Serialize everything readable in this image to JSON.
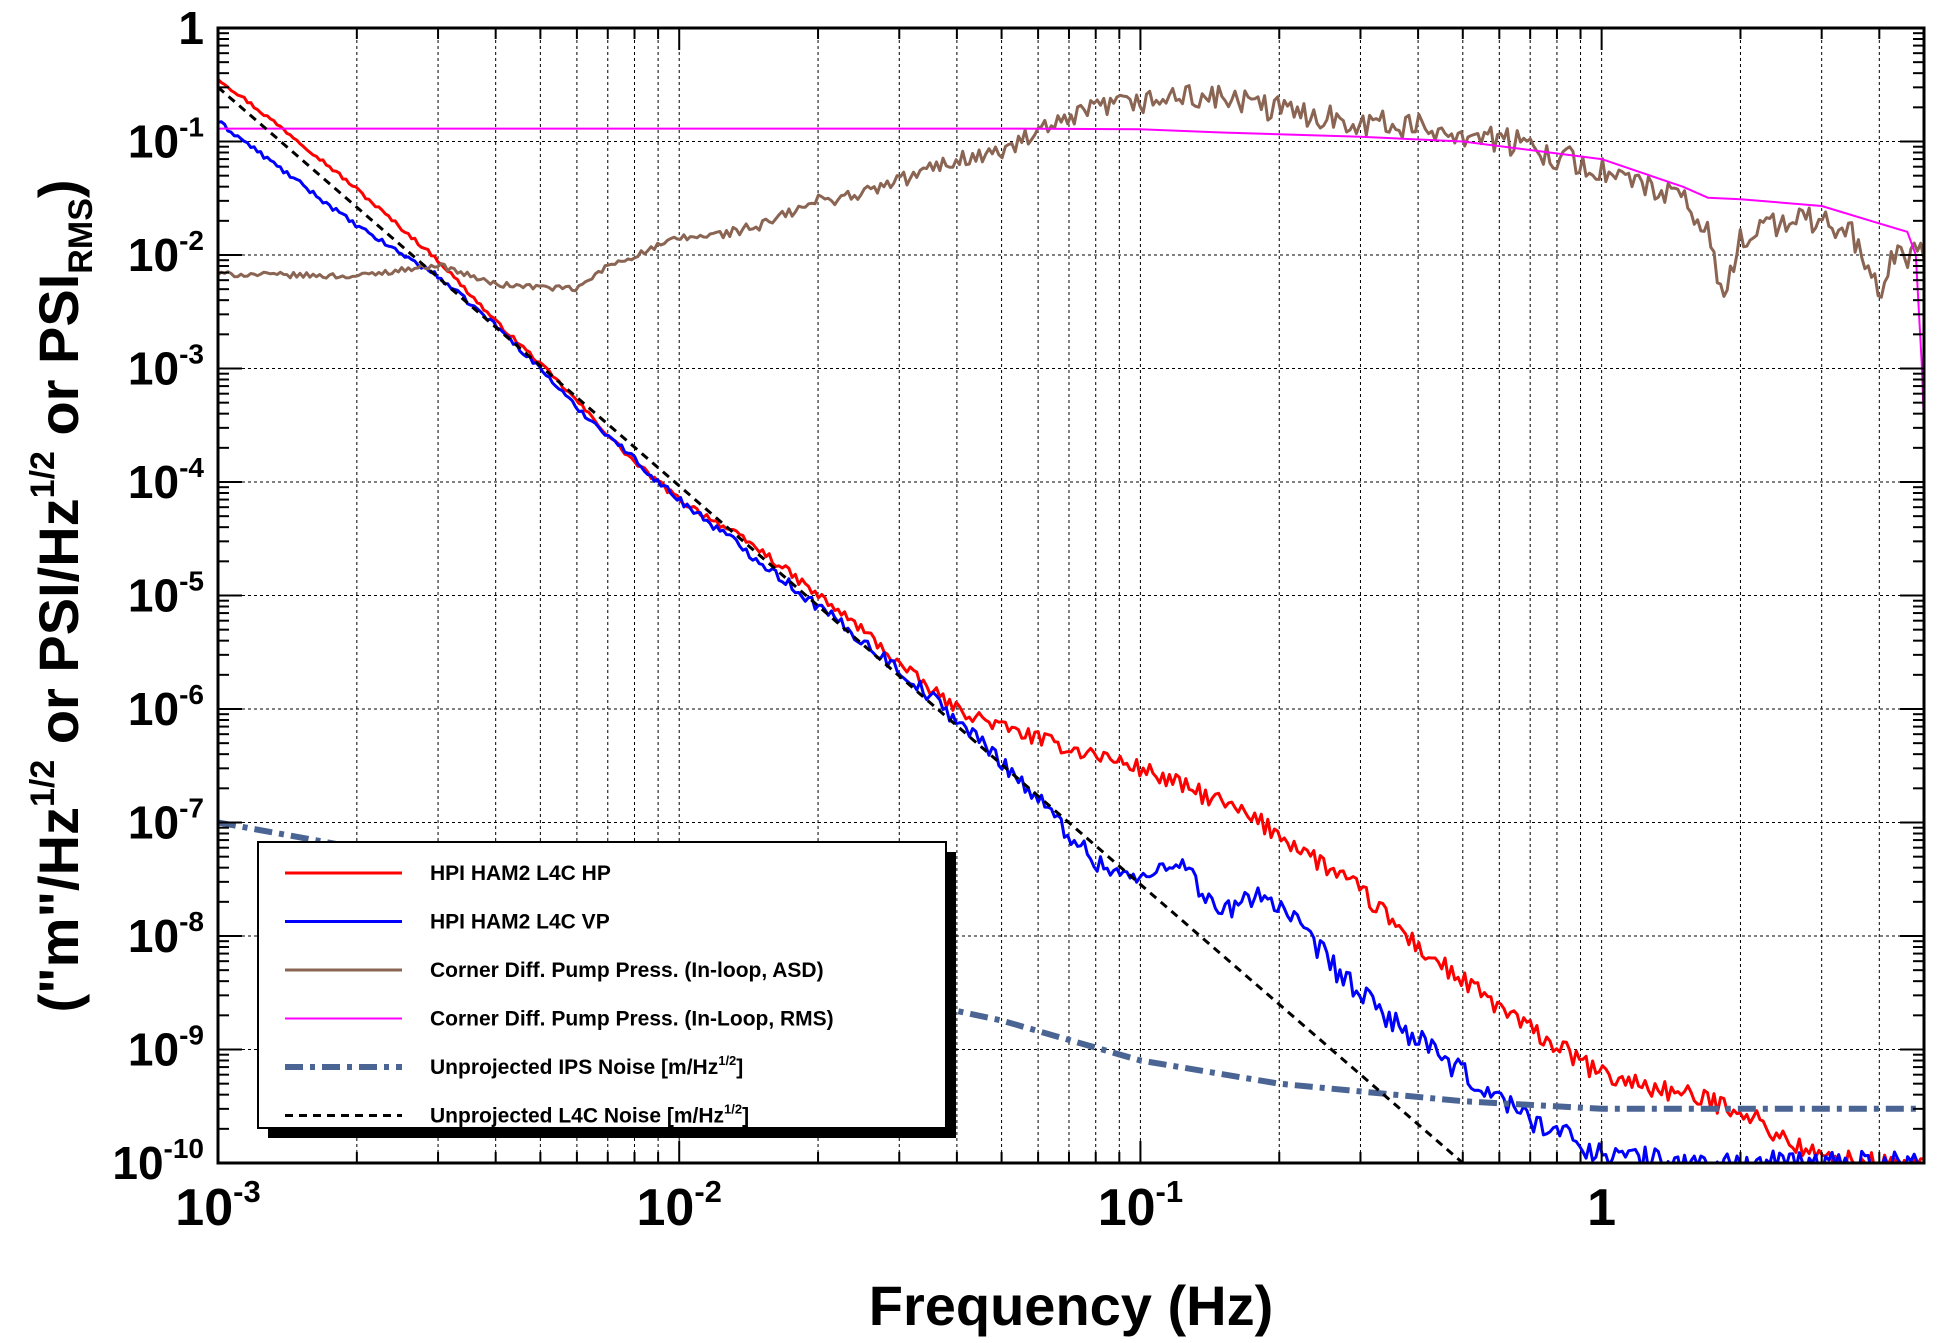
{
  "chart_data": {
    "type": "line",
    "title": "",
    "xlabel": "Frequency (Hz)",
    "ylabel": "(\"m\"/Hz^1/2 or PSI/Hz^1/2 or PSI_RMS)",
    "ylabel_parts": {
      "p1": "(\"m\"/Hz",
      "p2": "1/2",
      "p3": " or PSI/Hz",
      "p4": "1/2",
      "p5": " or PSI",
      "p6": "RMS",
      "p7": ")"
    },
    "x_scale": "log",
    "y_scale": "log",
    "xlim": [
      0.001,
      5
    ],
    "ylim": [
      1e-10,
      1
    ],
    "grid": true,
    "legend_position": "lower-left",
    "x_ticks": [
      {
        "base": "10",
        "exp": "-3",
        "value": 0.001
      },
      {
        "base": "10",
        "exp": "-2",
        "value": 0.01
      },
      {
        "base": "10",
        "exp": "-1",
        "value": 0.1
      },
      {
        "base": "1",
        "exp": "",
        "value": 1
      }
    ],
    "y_ticks": [
      {
        "base": "1",
        "exp": "",
        "value": 1
      },
      {
        "base": "10",
        "exp": "-1",
        "value": 0.1
      },
      {
        "base": "10",
        "exp": "-2",
        "value": 0.01
      },
      {
        "base": "10",
        "exp": "-3",
        "value": 0.001
      },
      {
        "base": "10",
        "exp": "-4",
        "value": 0.0001
      },
      {
        "base": "10",
        "exp": "-5",
        "value": 1e-05
      },
      {
        "base": "10",
        "exp": "-6",
        "value": 1e-06
      },
      {
        "base": "10",
        "exp": "-7",
        "value": 1e-07
      },
      {
        "base": "10",
        "exp": "-8",
        "value": 1e-08
      },
      {
        "base": "10",
        "exp": "-9",
        "value": 1e-09
      },
      {
        "base": "10",
        "exp": "-10",
        "value": 1e-10
      }
    ],
    "series": [
      {
        "name": "HPI HAM2 L4C HP",
        "color": "#ff0000",
        "style": "solid",
        "width": 3,
        "points": [
          [
            0.001,
            0.36
          ],
          [
            0.0015,
            0.1
          ],
          [
            0.002,
            0.038
          ],
          [
            0.003,
            0.009
          ],
          [
            0.004,
            0.0026
          ],
          [
            0.005,
            0.0011
          ],
          [
            0.006,
            0.00052
          ],
          [
            0.007,
            0.00026
          ],
          [
            0.008,
            0.00015
          ],
          [
            0.009,
            0.0001
          ],
          [
            0.01,
            7e-05
          ],
          [
            0.012,
            4.5e-05
          ],
          [
            0.015,
            2.5e-05
          ],
          [
            0.02,
            1e-05
          ],
          [
            0.025,
            5e-06
          ],
          [
            0.03,
            2.5e-06
          ],
          [
            0.035,
            1.5e-06
          ],
          [
            0.04,
            1e-06
          ],
          [
            0.05,
            7e-07
          ],
          [
            0.06,
            5.5e-07
          ],
          [
            0.07,
            4.5e-07
          ],
          [
            0.08,
            4e-07
          ],
          [
            0.1,
            3e-07
          ],
          [
            0.15,
            1.5e-07
          ],
          [
            0.2,
            8e-08
          ],
          [
            0.3,
            2.5e-08
          ],
          [
            0.4,
            8e-09
          ],
          [
            0.5,
            4e-09
          ],
          [
            0.7,
            1.5e-09
          ],
          [
            1.0,
            6e-10
          ],
          [
            1.5,
            4e-10
          ],
          [
            2.0,
            3e-10
          ],
          [
            2.5,
            1.6e-10
          ],
          [
            3.0,
            1.1e-10
          ],
          [
            4.0,
            1e-10
          ],
          [
            5.0,
            1e-10
          ]
        ]
      },
      {
        "name": "HPI HAM2 L4C VP",
        "color": "#0000ff",
        "style": "solid",
        "width": 3,
        "points": [
          [
            0.001,
            0.15
          ],
          [
            0.002,
            0.018
          ],
          [
            0.003,
            0.0065
          ],
          [
            0.004,
            0.0024
          ],
          [
            0.005,
            0.001
          ],
          [
            0.006,
            0.00045
          ],
          [
            0.007,
            0.00026
          ],
          [
            0.008,
            0.00016
          ],
          [
            0.009,
            0.0001
          ],
          [
            0.01,
            7e-05
          ],
          [
            0.012,
            4e-05
          ],
          [
            0.015,
            2e-05
          ],
          [
            0.02,
            8e-06
          ],
          [
            0.025,
            4e-06
          ],
          [
            0.03,
            2.2e-06
          ],
          [
            0.035,
            1.3e-06
          ],
          [
            0.04,
            8e-07
          ],
          [
            0.05,
            3.5e-07
          ],
          [
            0.06,
            1.6e-07
          ],
          [
            0.07,
            8e-08
          ],
          [
            0.08,
            4.5e-08
          ],
          [
            0.1,
            3e-08
          ],
          [
            0.12,
            5e-08
          ],
          [
            0.15,
            1.5e-08
          ],
          [
            0.18,
            2.5e-08
          ],
          [
            0.2,
            1.8e-08
          ],
          [
            0.3,
            3e-09
          ],
          [
            0.4,
            1.2e-09
          ],
          [
            0.5,
            6e-10
          ],
          [
            0.7,
            2.5e-10
          ],
          [
            1.0,
            1.2e-10
          ],
          [
            1.5,
            1e-10
          ],
          [
            2.0,
            1e-10
          ],
          [
            5.0,
            1e-10
          ]
        ]
      },
      {
        "name": "Corner Diff. Pump Press. (In-loop, ASD)",
        "color": "#8b6553",
        "style": "solid",
        "width": 3,
        "points": [
          [
            0.001,
            0.0068
          ],
          [
            0.002,
            0.0065
          ],
          [
            0.003,
            0.0082
          ],
          [
            0.004,
            0.0055
          ],
          [
            0.006,
            0.005
          ],
          [
            0.007,
            0.008
          ],
          [
            0.01,
            0.014
          ],
          [
            0.012,
            0.015
          ],
          [
            0.015,
            0.018
          ],
          [
            0.02,
            0.03
          ],
          [
            0.025,
            0.035
          ],
          [
            0.03,
            0.045
          ],
          [
            0.04,
            0.07
          ],
          [
            0.05,
            0.08
          ],
          [
            0.06,
            0.12
          ],
          [
            0.07,
            0.15
          ],
          [
            0.08,
            0.2
          ],
          [
            0.1,
            0.22
          ],
          [
            0.12,
            0.25
          ],
          [
            0.15,
            0.24
          ],
          [
            0.2,
            0.19
          ],
          [
            0.3,
            0.15
          ],
          [
            0.5,
            0.12
          ],
          [
            0.7,
            0.09
          ],
          [
            1.0,
            0.055
          ],
          [
            1.5,
            0.03
          ],
          [
            1.7,
            0.015
          ],
          [
            1.85,
            0.004
          ],
          [
            2.0,
            0.015
          ],
          [
            2.5,
            0.02
          ],
          [
            3.0,
            0.02
          ],
          [
            3.5,
            0.015
          ],
          [
            3.8,
            0.008
          ],
          [
            4.0,
            0.004
          ],
          [
            4.3,
            0.01
          ],
          [
            5.0,
            0.01
          ]
        ]
      },
      {
        "name": "Corner Diff. Pump Press. (In-Loop, RMS)",
        "color": "#ff00ff",
        "style": "solid",
        "width": 2,
        "points": [
          [
            0.001,
            0.13
          ],
          [
            0.05,
            0.13
          ],
          [
            0.1,
            0.128
          ],
          [
            0.15,
            0.12
          ],
          [
            0.3,
            0.11
          ],
          [
            0.5,
            0.1
          ],
          [
            1.0,
            0.07
          ],
          [
            1.5,
            0.04
          ],
          [
            1.7,
            0.032
          ],
          [
            2.0,
            0.031
          ],
          [
            3.0,
            0.027
          ],
          [
            4.0,
            0.019
          ],
          [
            4.6,
            0.016
          ],
          [
            4.8,
            0.01
          ],
          [
            4.95,
            0.001
          ],
          [
            5.0,
            0.0003
          ]
        ]
      },
      {
        "name": "Unprojected IPS Noise [m/Hz^1/2]",
        "label_parts": [
          "Unprojected IPS Noise [m/Hz",
          "1/2",
          "]"
        ],
        "color": "#4a6494",
        "style": "dashdot",
        "width": 6,
        "points": [
          [
            0.001,
            1e-07
          ],
          [
            0.002,
            6e-08
          ],
          [
            0.005,
            2e-08
          ],
          [
            0.01,
            8e-09
          ],
          [
            0.02,
            4e-09
          ],
          [
            0.05,
            1.8e-09
          ],
          [
            0.1,
            8e-10
          ],
          [
            0.2,
            5e-10
          ],
          [
            0.5,
            3.5e-10
          ],
          [
            1.0,
            3e-10
          ],
          [
            5.0,
            3e-10
          ]
        ]
      },
      {
        "name": "Unprojected L4C Noise [m/Hz^1/2]",
        "label_parts": [
          "Unprojected L4C Noise [m/Hz",
          "1/2",
          "]"
        ],
        "color": "#000000",
        "style": "dashed",
        "width": 3,
        "points": [
          [
            0.001,
            0.3
          ],
          [
            0.5,
            1e-10
          ]
        ]
      }
    ]
  }
}
